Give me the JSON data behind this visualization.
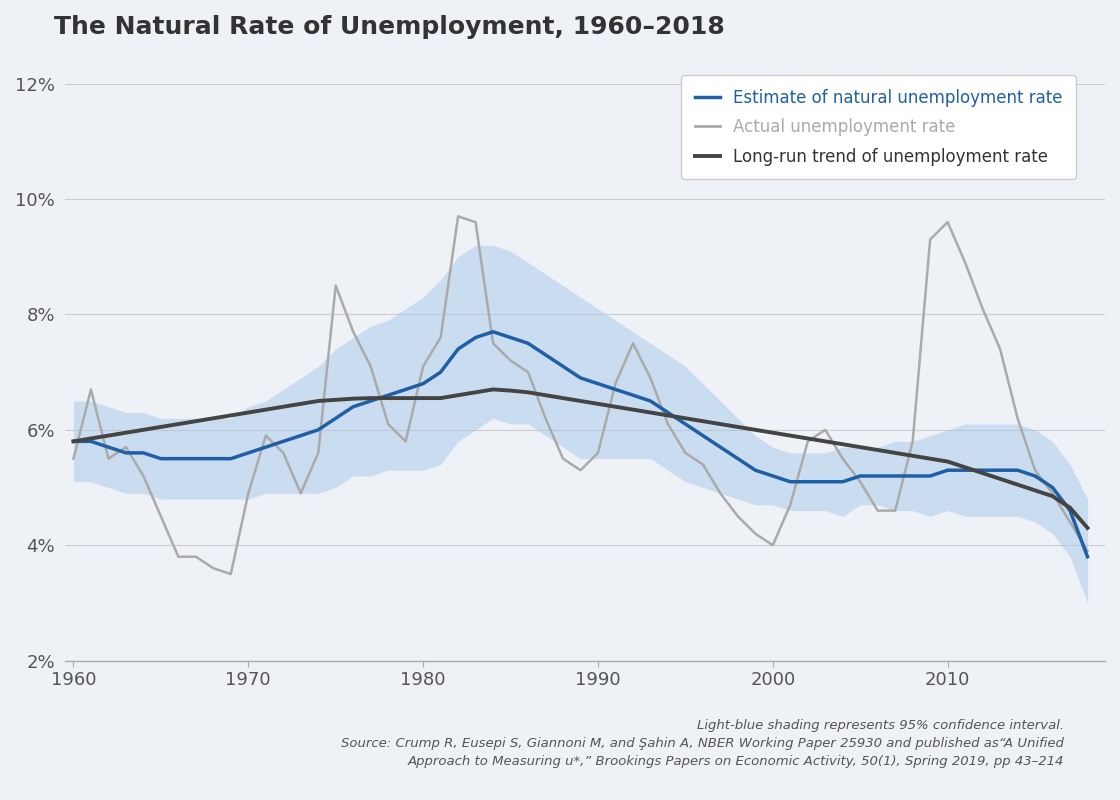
{
  "title": "The Natural Rate of Unemployment, 1960–2018",
  "background_color": "#eef2f7",
  "plot_bg_color": "#eef2f7",
  "ylabel_ticks": [
    "2%",
    "4%",
    "6%",
    "8%",
    "10%",
    "12%"
  ],
  "ytick_vals": [
    2,
    4,
    6,
    8,
    10,
    12
  ],
  "xlim": [
    1959.5,
    2019
  ],
  "ylim": [
    2,
    12.5
  ],
  "xticks": [
    1960,
    1970,
    1980,
    1990,
    2000,
    2010
  ],
  "footnote_line1": "Light-blue shading represents 95% confidence interval.",
  "footnote_line2": "Source: Crump R, Eusepi S, Giannoni M, and Şahin A, NBER Working Paper 25930 and published as“A Unified",
  "footnote_line3": "Approach to Measuring u*,” Brookings Papers on Economic Activity, 50(1), Spring 2019, pp 43–214",
  "legend_labels": [
    "Estimate of natural unemployment rate",
    "Actual unemployment rate",
    "Long-run trend of unemployment rate"
  ],
  "estimate_color": "#1f5fa6",
  "actual_color": "#aaaaaa",
  "trend_color": "#444444",
  "ci_color": "#a8c8e8",
  "estimate_lw": 2.5,
  "actual_lw": 1.8,
  "trend_lw": 2.8,
  "years": [
    1960,
    1961,
    1962,
    1963,
    1964,
    1965,
    1966,
    1967,
    1968,
    1969,
    1970,
    1971,
    1972,
    1973,
    1974,
    1975,
    1976,
    1977,
    1978,
    1979,
    1980,
    1981,
    1982,
    1983,
    1984,
    1985,
    1986,
    1987,
    1988,
    1989,
    1990,
    1991,
    1992,
    1993,
    1994,
    1995,
    1996,
    1997,
    1998,
    1999,
    2000,
    2001,
    2002,
    2003,
    2004,
    2005,
    2006,
    2007,
    2008,
    2009,
    2010,
    2011,
    2012,
    2013,
    2014,
    2015,
    2016,
    2017,
    2018
  ],
  "actual": [
    5.5,
    6.7,
    5.5,
    5.7,
    5.2,
    4.5,
    3.8,
    3.8,
    3.6,
    3.5,
    4.9,
    5.9,
    5.6,
    4.9,
    5.6,
    8.5,
    7.7,
    7.1,
    6.1,
    5.8,
    7.1,
    7.6,
    9.7,
    9.6,
    7.5,
    7.2,
    7.0,
    6.2,
    5.5,
    5.3,
    5.6,
    6.8,
    7.5,
    6.9,
    6.1,
    5.6,
    5.4,
    4.9,
    4.5,
    4.2,
    4.0,
    4.7,
    5.8,
    6.0,
    5.5,
    5.1,
    4.6,
    4.6,
    5.8,
    9.3,
    9.6,
    8.9,
    8.1,
    7.4,
    6.2,
    5.3,
    4.9,
    4.4,
    3.9
  ],
  "estimate": [
    5.8,
    5.8,
    5.7,
    5.6,
    5.6,
    5.5,
    5.5,
    5.5,
    5.5,
    5.5,
    5.6,
    5.7,
    5.8,
    5.9,
    6.0,
    6.2,
    6.4,
    6.5,
    6.6,
    6.7,
    6.8,
    7.0,
    7.4,
    7.6,
    7.7,
    7.6,
    7.5,
    7.3,
    7.1,
    6.9,
    6.8,
    6.7,
    6.6,
    6.5,
    6.3,
    6.1,
    5.9,
    5.7,
    5.5,
    5.3,
    5.2,
    5.1,
    5.1,
    5.1,
    5.1,
    5.2,
    5.2,
    5.2,
    5.2,
    5.2,
    5.3,
    5.3,
    5.3,
    5.3,
    5.3,
    5.2,
    5.0,
    4.6,
    3.8
  ],
  "ci_upper": [
    6.5,
    6.5,
    6.4,
    6.3,
    6.3,
    6.2,
    6.2,
    6.2,
    6.2,
    6.2,
    6.4,
    6.5,
    6.7,
    6.9,
    7.1,
    7.4,
    7.6,
    7.8,
    7.9,
    8.1,
    8.3,
    8.6,
    9.0,
    9.2,
    9.2,
    9.1,
    8.9,
    8.7,
    8.5,
    8.3,
    8.1,
    7.9,
    7.7,
    7.5,
    7.3,
    7.1,
    6.8,
    6.5,
    6.2,
    5.9,
    5.7,
    5.6,
    5.6,
    5.6,
    5.7,
    5.7,
    5.7,
    5.8,
    5.8,
    5.9,
    6.0,
    6.1,
    6.1,
    6.1,
    6.1,
    6.0,
    5.8,
    5.4,
    4.8
  ],
  "ci_lower": [
    5.1,
    5.1,
    5.0,
    4.9,
    4.9,
    4.8,
    4.8,
    4.8,
    4.8,
    4.8,
    4.8,
    4.9,
    4.9,
    4.9,
    4.9,
    5.0,
    5.2,
    5.2,
    5.3,
    5.3,
    5.3,
    5.4,
    5.8,
    6.0,
    6.2,
    6.1,
    6.1,
    5.9,
    5.7,
    5.5,
    5.5,
    5.5,
    5.5,
    5.5,
    5.3,
    5.1,
    5.0,
    4.9,
    4.8,
    4.7,
    4.7,
    4.6,
    4.6,
    4.6,
    4.5,
    4.7,
    4.7,
    4.6,
    4.6,
    4.5,
    4.6,
    4.5,
    4.5,
    4.5,
    4.5,
    4.4,
    4.2,
    3.8,
    3.0
  ],
  "trend": [
    5.8,
    5.85,
    5.9,
    5.95,
    6.0,
    6.05,
    6.1,
    6.15,
    6.2,
    6.25,
    6.3,
    6.35,
    6.4,
    6.45,
    6.5,
    6.52,
    6.54,
    6.55,
    6.55,
    6.55,
    6.55,
    6.55,
    6.6,
    6.65,
    6.7,
    6.68,
    6.65,
    6.6,
    6.55,
    6.5,
    6.45,
    6.4,
    6.35,
    6.3,
    6.25,
    6.2,
    6.15,
    6.1,
    6.05,
    6.0,
    5.95,
    5.9,
    5.85,
    5.8,
    5.75,
    5.7,
    5.65,
    5.6,
    5.55,
    5.5,
    5.45,
    5.35,
    5.25,
    5.15,
    5.05,
    4.95,
    4.85,
    4.65,
    4.3
  ]
}
